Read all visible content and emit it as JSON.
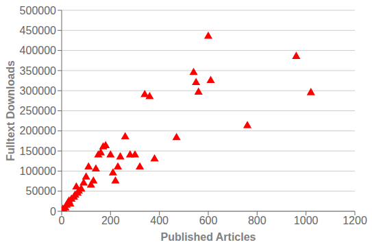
{
  "chart_data": {
    "type": "scatter",
    "x": [
      5,
      10,
      15,
      20,
      25,
      30,
      35,
      40,
      50,
      55,
      60,
      65,
      70,
      80,
      90,
      100,
      110,
      120,
      130,
      140,
      150,
      160,
      170,
      180,
      200,
      210,
      220,
      230,
      240,
      260,
      280,
      300,
      320,
      340,
      360,
      380,
      470,
      540,
      550,
      560,
      600,
      610,
      760,
      960,
      1020
    ],
    "values": [
      5000,
      2000,
      8000,
      15000,
      20000,
      25000,
      18000,
      30000,
      35000,
      40000,
      60000,
      45000,
      50000,
      55000,
      70000,
      85000,
      110000,
      65000,
      75000,
      105000,
      140000,
      145000,
      160000,
      163000,
      140000,
      95000,
      75000,
      110000,
      135000,
      185000,
      140000,
      140000,
      110000,
      290000,
      285000,
      130000,
      183000,
      345000,
      320000,
      296000,
      435000,
      325000,
      213000,
      385000,
      295000
    ],
    "color": "#FF0000",
    "marker": "triangle",
    "xlabel": "Published Articles",
    "ylabel": "Fulltext Downloads",
    "xlim": [
      0,
      1200
    ],
    "ylim": [
      0,
      500000
    ],
    "xticks": [
      0,
      200,
      400,
      600,
      800,
      1000,
      1200
    ],
    "yticks": [
      0,
      50000,
      100000,
      150000,
      200000,
      250000,
      300000,
      350000,
      400000,
      450000,
      500000
    ],
    "grid": true
  }
}
